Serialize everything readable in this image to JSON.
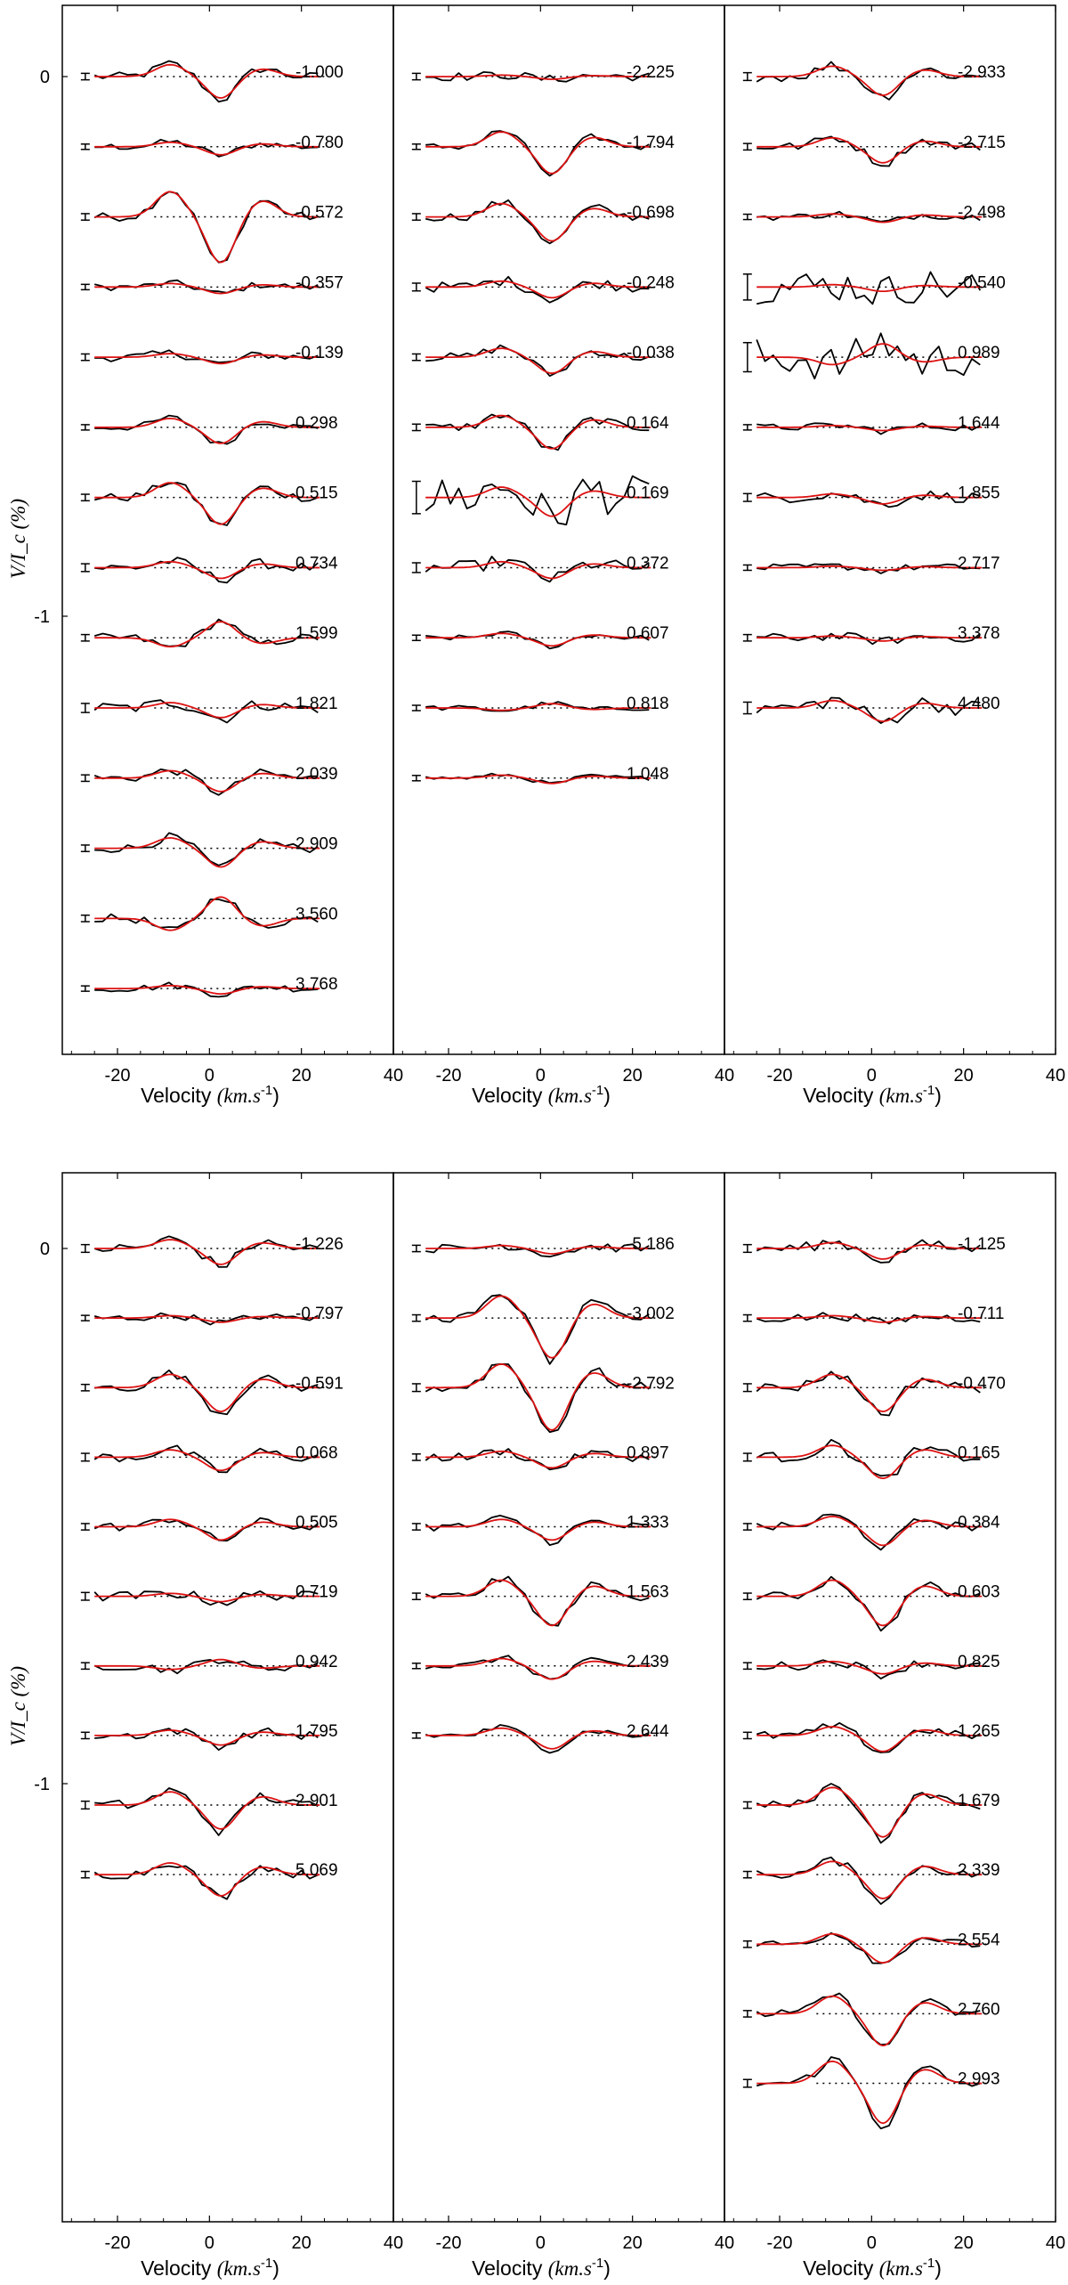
{
  "chart_data": {
    "type": "line",
    "figure": "Zeeman signatures (Stokes V / Ic) vs velocity, observed (black) and model (red)",
    "ylabel": "V/I_c (%)",
    "y_ticks": [
      "0",
      "-1"
    ],
    "xlabel_text": "Velocity",
    "xlabel_unit": "(km.s",
    "xlabel_exp": "-1",
    "xlabel_close": ")",
    "xlim": [
      -32,
      40
    ],
    "x_ticks": [
      "-20",
      "0",
      "20",
      "40"
    ],
    "colors": {
      "observed": "#000000",
      "model": "#dd1111",
      "reference": "#000000"
    },
    "row_offset": 0.13,
    "note": "Profiles are offset vertically by 0.13 % per row; amplitudes in % (approximate shape read from figure).",
    "plots": [
      {
        "name": "top",
        "panels": [
          {
            "name": "top-left",
            "profiles": [
              {
                "phase": "-1.000",
                "amp": 0.04,
                "noise": 0.01,
                "shape": 1
              },
              {
                "phase": "-0.780",
                "amp": 0.015,
                "noise": 0.008,
                "shape": 1
              },
              {
                "phase": "-0.572",
                "amp": 0.085,
                "noise": 0.01,
                "shape": 1
              },
              {
                "phase": "-0.357",
                "amp": 0.012,
                "noise": 0.008,
                "shape": 1
              },
              {
                "phase": "-0.139",
                "amp": 0.012,
                "noise": 0.01,
                "shape": 1
              },
              {
                "phase": "0.298",
                "amp": 0.03,
                "noise": 0.008,
                "shape": 1
              },
              {
                "phase": "0.515",
                "amp": 0.05,
                "noise": 0.01,
                "shape": 1
              },
              {
                "phase": "0.734",
                "amp": 0.02,
                "noise": 0.012,
                "shape": 1
              },
              {
                "phase": "1.599",
                "amp": 0.03,
                "noise": 0.01,
                "shape": -1
              },
              {
                "phase": "1.821",
                "amp": 0.018,
                "noise": 0.014,
                "shape": 1
              },
              {
                "phase": "2.039",
                "amp": 0.025,
                "noise": 0.01,
                "shape": 1
              },
              {
                "phase": "2.909",
                "amp": 0.035,
                "noise": 0.01,
                "shape": 1
              },
              {
                "phase": "3.560",
                "amp": 0.04,
                "noise": 0.01,
                "shape": -1
              },
              {
                "phase": "3.768",
                "amp": 0.01,
                "noise": 0.008,
                "shape": 1
              }
            ]
          },
          {
            "name": "top-middle",
            "profiles": [
              {
                "phase": "-2.225",
                "amp": 0.005,
                "noise": 0.01,
                "shape": 1
              },
              {
                "phase": "-1.794",
                "amp": 0.05,
                "noise": 0.008,
                "shape": 1
              },
              {
                "phase": "-0.698",
                "amp": 0.045,
                "noise": 0.01,
                "shape": 1
              },
              {
                "phase": "-0.248",
                "amp": 0.02,
                "noise": 0.012,
                "shape": 1
              },
              {
                "phase": "-0.038",
                "amp": 0.03,
                "noise": 0.01,
                "shape": 1
              },
              {
                "phase": "0.164",
                "amp": 0.04,
                "noise": 0.01,
                "shape": 1
              },
              {
                "phase": "0.169",
                "amp": 0.035,
                "noise": 0.05,
                "shape": 1
              },
              {
                "phase": "0.372",
                "amp": 0.02,
                "noise": 0.015,
                "shape": 1
              },
              {
                "phase": "0.607",
                "amp": 0.015,
                "noise": 0.006,
                "shape": 1
              },
              {
                "phase": "0.818",
                "amp": 0.008,
                "noise": 0.006,
                "shape": -1
              },
              {
                "phase": "1.048",
                "amp": 0.01,
                "noise": 0.005,
                "shape": 1
              }
            ]
          },
          {
            "name": "top-right",
            "profiles": [
              {
                "phase": "-2.933",
                "amp": 0.035,
                "noise": 0.012,
                "shape": 1
              },
              {
                "phase": "-2.715",
                "amp": 0.03,
                "noise": 0.01,
                "shape": 1
              },
              {
                "phase": "-2.498",
                "amp": 0.01,
                "noise": 0.008,
                "shape": 1
              },
              {
                "phase": "-0.540",
                "amp": 0.008,
                "noise": 0.04,
                "shape": 1
              },
              {
                "phase": "0.989",
                "amp": 0.025,
                "noise": 0.045,
                "shape": -1
              },
              {
                "phase": "1.644",
                "amp": 0.006,
                "noise": 0.008,
                "shape": 1
              },
              {
                "phase": "1.855",
                "amp": 0.012,
                "noise": 0.012,
                "shape": 1
              },
              {
                "phase": "2.717",
                "amp": 0.005,
                "noise": 0.008,
                "shape": 1
              },
              {
                "phase": "3.378",
                "amp": 0.006,
                "noise": 0.01,
                "shape": 1
              },
              {
                "phase": "4.480",
                "amp": 0.025,
                "noise": 0.018,
                "shape": 1
              }
            ]
          }
        ]
      },
      {
        "name": "bottom",
        "panels": [
          {
            "name": "bottom-left",
            "profiles": [
              {
                "phase": "-1.226",
                "amp": 0.03,
                "noise": 0.012,
                "shape": 1
              },
              {
                "phase": "-0.797",
                "amp": 0.008,
                "noise": 0.008,
                "shape": 1
              },
              {
                "phase": "-0.591",
                "amp": 0.045,
                "noise": 0.01,
                "shape": 1
              },
              {
                "phase": "0.068",
                "amp": 0.025,
                "noise": 0.012,
                "shape": 1
              },
              {
                "phase": "0.505",
                "amp": 0.025,
                "noise": 0.01,
                "shape": 1
              },
              {
                "phase": "0.719",
                "amp": 0.01,
                "noise": 0.012,
                "shape": 1
              },
              {
                "phase": "0.942",
                "amp": 0.012,
                "noise": 0.01,
                "shape": -1
              },
              {
                "phase": "1.795",
                "amp": 0.018,
                "noise": 0.01,
                "shape": 1
              },
              {
                "phase": "2.901",
                "amp": 0.045,
                "noise": 0.012,
                "shape": 1
              },
              {
                "phase": "5.069",
                "amp": 0.04,
                "noise": 0.01,
                "shape": 1
              }
            ]
          },
          {
            "name": "bottom-middle",
            "profiles": [
              {
                "phase": "-5.186",
                "amp": 0.01,
                "noise": 0.01,
                "shape": 1
              },
              {
                "phase": "-3.002",
                "amp": 0.075,
                "noise": 0.01,
                "shape": 1
              },
              {
                "phase": "-2.792",
                "amp": 0.08,
                "noise": 0.012,
                "shape": 1
              },
              {
                "phase": "0.897",
                "amp": 0.02,
                "noise": 0.01,
                "shape": 1
              },
              {
                "phase": "1.333",
                "amp": 0.025,
                "noise": 0.01,
                "shape": 1
              },
              {
                "phase": "1.563",
                "amp": 0.055,
                "noise": 0.01,
                "shape": 1
              },
              {
                "phase": "2.439",
                "amp": 0.025,
                "noise": 0.008,
                "shape": 1
              },
              {
                "phase": "2.644",
                "amp": 0.025,
                "noise": 0.008,
                "shape": 1
              }
            ]
          },
          {
            "name": "bottom-right",
            "profiles": [
              {
                "phase": "-1.125",
                "amp": 0.02,
                "noise": 0.012,
                "shape": 1
              },
              {
                "phase": "-0.711",
                "amp": 0.008,
                "noise": 0.01,
                "shape": 1
              },
              {
                "phase": "-0.470",
                "amp": 0.045,
                "noise": 0.012,
                "shape": 1
              },
              {
                "phase": "0.165",
                "amp": 0.04,
                "noise": 0.012,
                "shape": 1
              },
              {
                "phase": "0.384",
                "amp": 0.035,
                "noise": 0.01,
                "shape": 1
              },
              {
                "phase": "0.603",
                "amp": 0.055,
                "noise": 0.01,
                "shape": 1
              },
              {
                "phase": "0.825",
                "amp": 0.015,
                "noise": 0.01,
                "shape": 1
              },
              {
                "phase": "1.265",
                "amp": 0.03,
                "noise": 0.01,
                "shape": 1
              },
              {
                "phase": "1.679",
                "amp": 0.06,
                "noise": 0.01,
                "shape": 1
              },
              {
                "phase": "2.339",
                "amp": 0.045,
                "noise": 0.01,
                "shape": 1
              },
              {
                "phase": "2.554",
                "amp": 0.035,
                "noise": 0.01,
                "shape": 1
              },
              {
                "phase": "2.760",
                "amp": 0.06,
                "noise": 0.01,
                "shape": 1
              },
              {
                "phase": "2.993",
                "amp": 0.075,
                "noise": 0.012,
                "shape": 1
              }
            ]
          }
        ]
      }
    ]
  }
}
